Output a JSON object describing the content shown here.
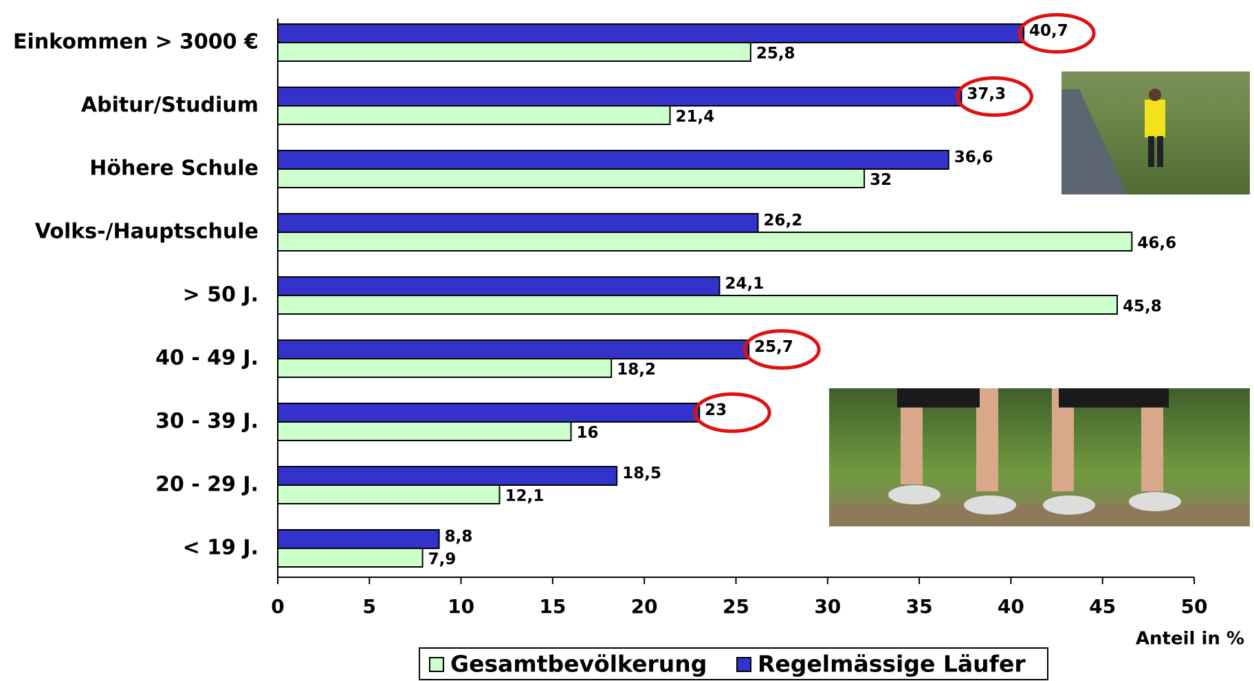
{
  "chart_data": {
    "type": "hbar",
    "categories": [
      "Einkommen > 3000 €",
      "Abitur/Studium",
      "Höhere Schule",
      "Volks-/Hauptschule",
      "> 50 J.",
      "40 - 49 J.",
      "30 - 39 J.",
      "20 - 29 J.",
      "< 19 J."
    ],
    "series": [
      {
        "name": "Gesamtbevölkerung",
        "color": "#ccffcc",
        "values": [
          25.8,
          21.4,
          32,
          46.6,
          45.8,
          18.2,
          16,
          12.1,
          7.9
        ],
        "value_labels": [
          "25,8",
          "21,4",
          "32",
          "46,6",
          "45,8",
          "18,2",
          "16",
          "12,1",
          "7,9"
        ]
      },
      {
        "name": "Regelmässige Läufer",
        "color": "#3333cc",
        "values": [
          40.7,
          37.3,
          36.6,
          26.2,
          24.1,
          25.7,
          23,
          18.5,
          8.8
        ],
        "value_labels": [
          "40,7",
          "37,3",
          "36,6",
          "26,2",
          "24,1",
          "25,7",
          "23",
          "18,5",
          "8,8"
        ],
        "highlight": [
          0,
          1,
          5,
          6
        ]
      }
    ],
    "xlim": [
      0,
      50
    ],
    "xticks": [
      0,
      5,
      10,
      15,
      20,
      25,
      30,
      35,
      40,
      45,
      50
    ],
    "x_label": "Anteil in %",
    "legend": "bottom"
  }
}
